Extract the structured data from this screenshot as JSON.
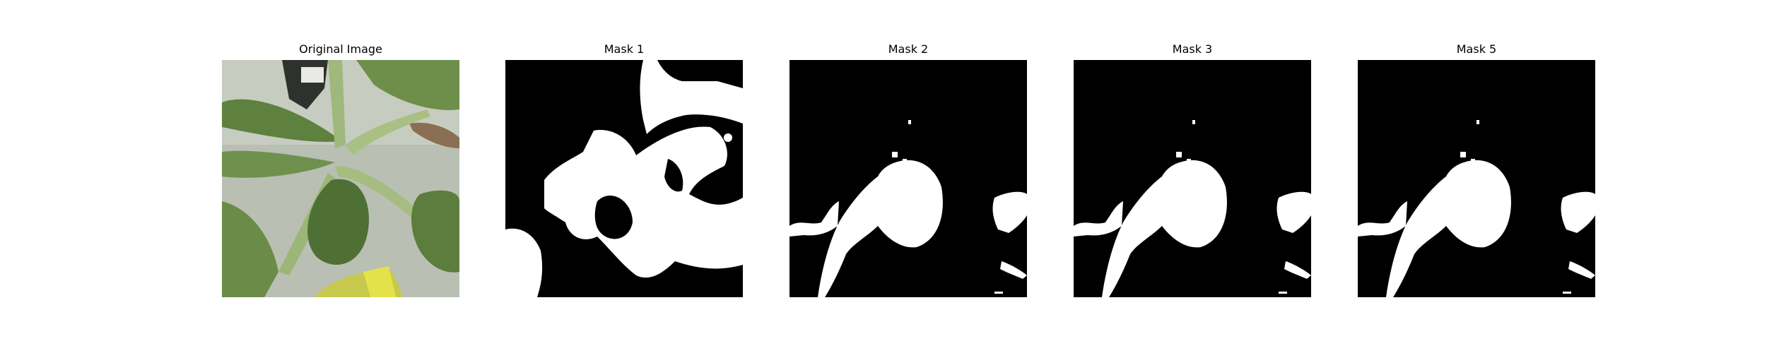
{
  "figure": {
    "panels": [
      {
        "title": "Original Image",
        "kind": "photo"
      },
      {
        "title": "Mask 1",
        "kind": "mask"
      },
      {
        "title": "Mask 2",
        "kind": "mask"
      },
      {
        "title": "Mask 3",
        "kind": "mask"
      },
      {
        "title": "Mask 5",
        "kind": "mask"
      }
    ]
  },
  "colors": {
    "background": "#ffffff",
    "mask_background": "#000000",
    "mask_foreground": "#ffffff",
    "leaf_dark": "#5e7f3f",
    "leaf_light": "#9fb87c",
    "photo_background": "#b9bfb3"
  }
}
